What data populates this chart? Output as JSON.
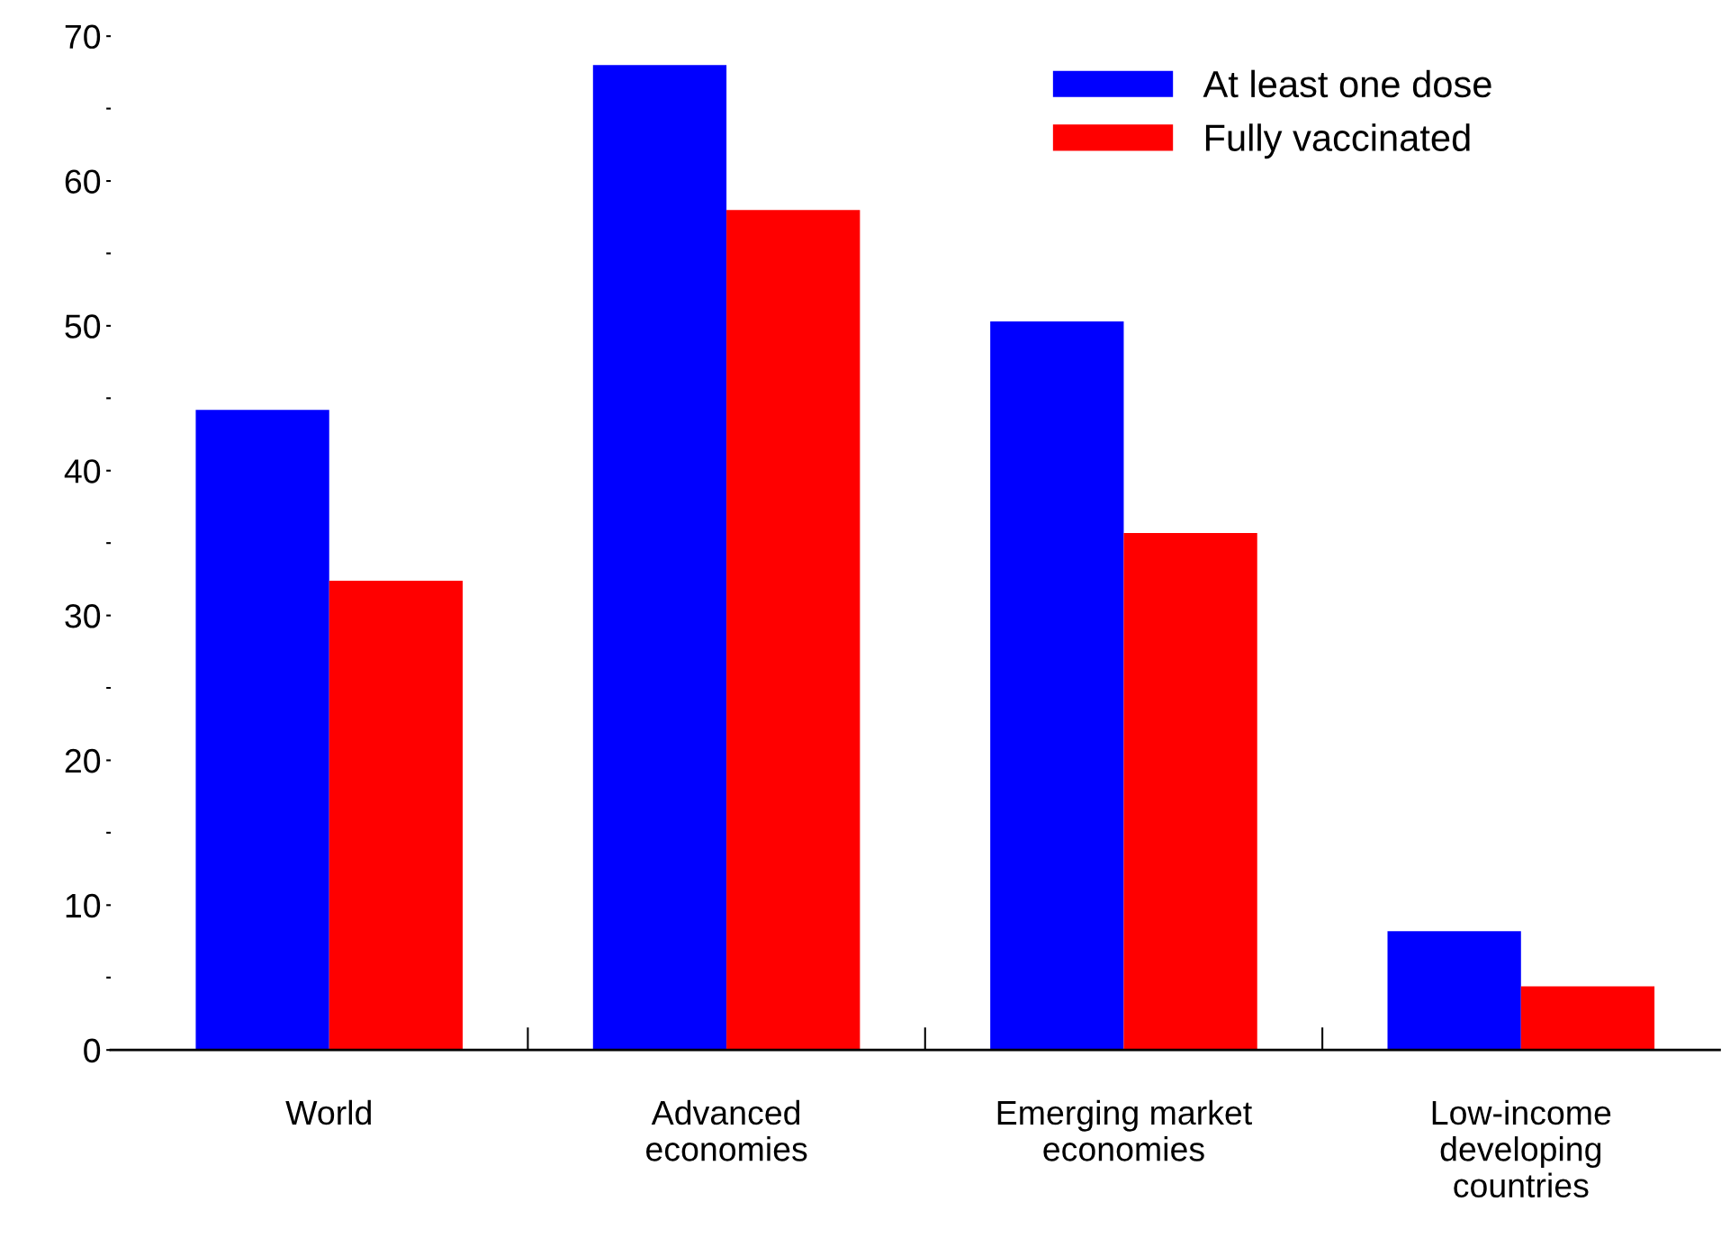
{
  "chart_data": {
    "type": "bar",
    "categories": [
      "World",
      "Advanced\neconomies",
      "Emerging market\neconomies",
      "Low-income\ndeveloping\ncountries"
    ],
    "series": [
      {
        "name": "At least one dose",
        "color": "#0000ff",
        "values": [
          44.2,
          68.0,
          50.3,
          8.2
        ]
      },
      {
        "name": "Fully vaccinated",
        "color": "#ff0000",
        "values": [
          32.4,
          58.0,
          35.7,
          4.4
        ]
      }
    ],
    "ylim": [
      0,
      70
    ],
    "yticks": [
      0,
      {
        "value": 5,
        "label": null
      },
      10,
      {
        "value": 15,
        "label": null
      },
      20,
      {
        "value": 25,
        "label": null
      },
      30,
      {
        "value": 35,
        "label": null
      },
      40,
      {
        "value": 45,
        "label": null
      },
      50,
      {
        "value": 55,
        "label": null
      },
      60,
      {
        "value": 65,
        "label": null
      },
      70
    ],
    "grid": false,
    "legend": "top right"
  }
}
